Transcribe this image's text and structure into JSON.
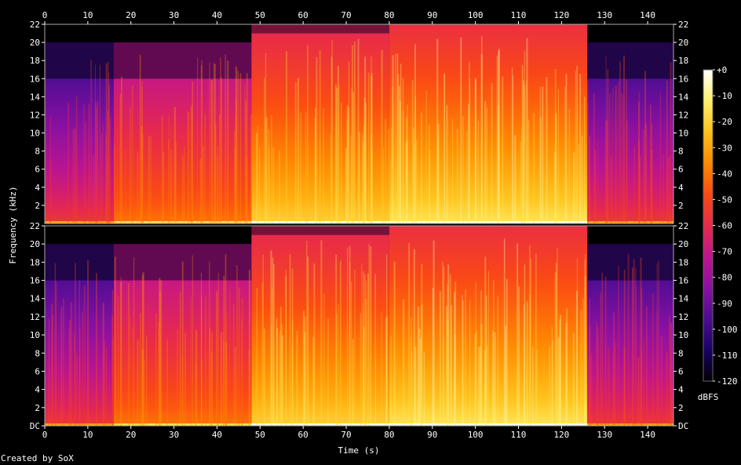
{
  "chart_data": {
    "type": "heatmap",
    "title": "",
    "xlabel": "Time (s)",
    "ylabel": "Frequency (kHz)",
    "xlim": [
      0,
      146
    ],
    "x_ticks": [
      0,
      10,
      20,
      30,
      40,
      50,
      60,
      70,
      80,
      90,
      100,
      110,
      120,
      130,
      140
    ],
    "channels": [
      {
        "name": "",
        "ylim": [
          0,
          22
        ],
        "y_tick_labels": [
          "22",
          "20",
          "18",
          "16",
          "14",
          "12",
          "10",
          "8",
          "6",
          "4",
          "2"
        ],
        "bottom_label": ""
      },
      {
        "name": "",
        "ylim": [
          0,
          22
        ],
        "y_tick_labels": [
          "22",
          "20",
          "18",
          "16",
          "14",
          "12",
          "10",
          "8",
          "6",
          "4",
          "2",
          "DC"
        ],
        "bottom_label": "DC"
      }
    ],
    "colorbar": {
      "label": "dBFS",
      "range": [
        -120,
        0
      ],
      "tick_labels": [
        "+0",
        "-10",
        "-20",
        "-30",
        "-40",
        "-50",
        "-60",
        "-70",
        "-80",
        "-90",
        "-100",
        "-110",
        "-120"
      ],
      "colors": [
        "#000000",
        "#1a0066",
        "#4b0d91",
        "#8a10a3",
        "#c0148e",
        "#e82a4a",
        "#fb4a12",
        "#ff8a00",
        "#ffc21a",
        "#fff06a",
        "#ffffff"
      ]
    },
    "segments": [
      {
        "start": 0,
        "end": 16,
        "bandlimit_khz": 16,
        "level_low_db": -55,
        "level_high_db": -95
      },
      {
        "start": 16,
        "end": 48,
        "bandlimit_khz": 16,
        "level_low_db": -40,
        "level_high_db": -70
      },
      {
        "start": 48,
        "end": 80,
        "bandlimit_khz": 21,
        "level_low_db": -20,
        "level_high_db": -60
      },
      {
        "start": 80,
        "end": 126,
        "bandlimit_khz": 22,
        "level_low_db": -15,
        "level_high_db": -58
      },
      {
        "start": 126,
        "end": 146,
        "bandlimit_khz": 16,
        "level_low_db": -55,
        "level_high_db": -95
      }
    ]
  },
  "footer": {
    "credit": "Created by SoX"
  }
}
